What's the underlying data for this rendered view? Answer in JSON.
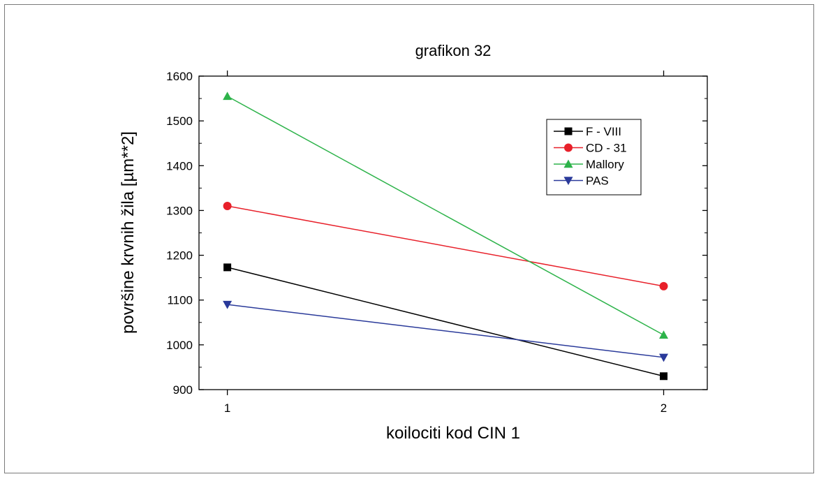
{
  "chart_data": {
    "type": "line",
    "title": "grafikon 32",
    "xlabel": "koilociti kod CIN 1",
    "ylabel": "površine krvnih žila [µm**2]",
    "x": [
      1,
      2
    ],
    "x_ticks": [
      "1",
      "2"
    ],
    "xlim": [
      0.935,
      2.1
    ],
    "ylim": [
      900,
      1600
    ],
    "y_ticks": [
      900,
      1000,
      1100,
      1200,
      1300,
      1400,
      1500,
      1600
    ],
    "legend_position": "top-right",
    "grid": false,
    "series": [
      {
        "name": "F - VIII",
        "values": [
          1173,
          930
        ],
        "color": "#000000",
        "marker": "square"
      },
      {
        "name": "CD - 31",
        "values": [
          1310,
          1131
        ],
        "color": "#e8202a",
        "marker": "circle"
      },
      {
        "name": "Mallory",
        "values": [
          1555,
          1022
        ],
        "color": "#2db34a",
        "marker": "triangle-up"
      },
      {
        "name": "PAS",
        "values": [
          1090,
          972
        ],
        "color": "#2a3a9a",
        "marker": "triangle-down"
      }
    ]
  }
}
